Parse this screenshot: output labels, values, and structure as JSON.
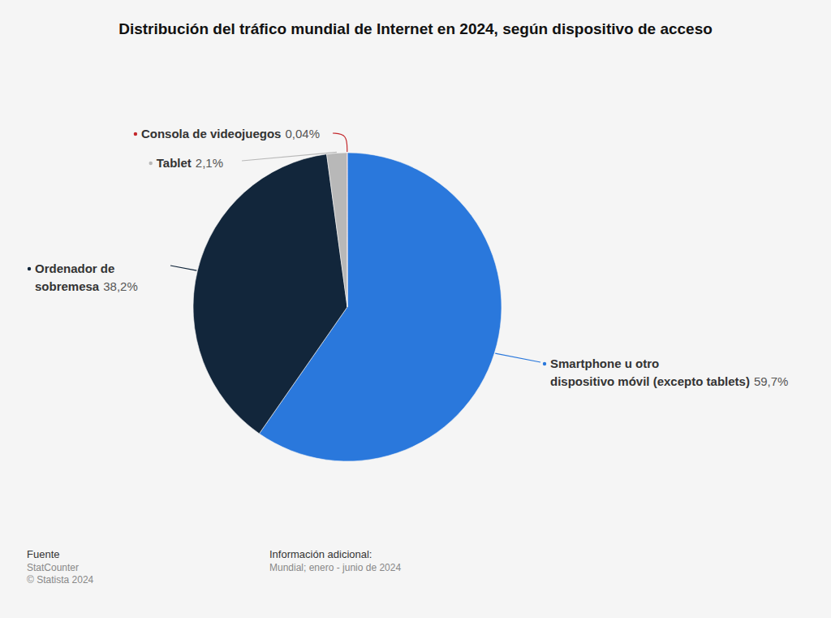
{
  "chart_data": {
    "type": "pie",
    "title": "Distribución del tráfico mundial de Internet en 2024, según dispositivo de acceso",
    "categories": [
      "Smartphone u otro\ndispositivo móvil (excepto tablets)",
      "Ordenador de\nsobremesa",
      "Tablet",
      "Consola de videojuegos"
    ],
    "values": [
      59.7,
      38.2,
      2.1,
      0.04
    ],
    "value_labels": [
      "59,7%",
      "38,2%",
      "2,1%",
      "0,04%"
    ],
    "colors": [
      "#2a78dc",
      "#12263b",
      "#b8b8b8",
      "#c3272b"
    ],
    "data_labels": true,
    "source": {
      "label": "Fuente",
      "lines": [
        "StatCounter",
        "© Statista 2024"
      ]
    },
    "additional_info": {
      "label": "Información adicional:",
      "text": "Mundial; enero - junio de 2024"
    }
  }
}
